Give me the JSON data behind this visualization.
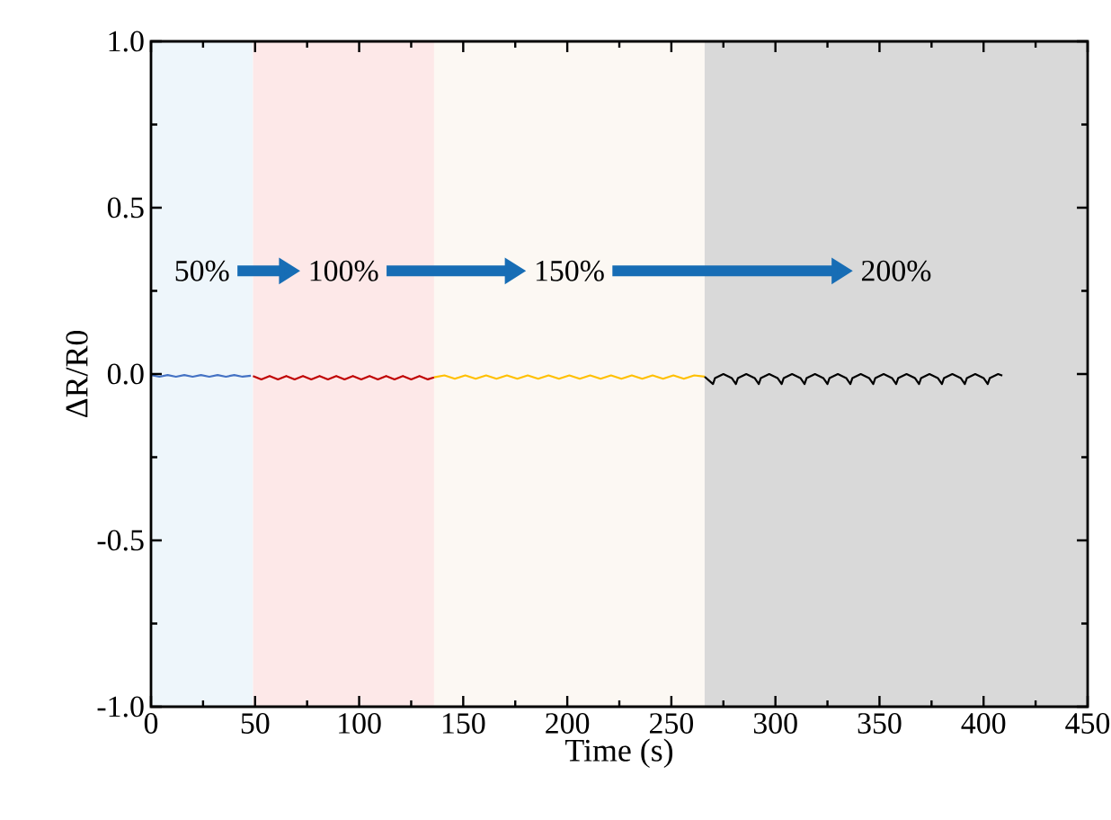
{
  "chart_data": {
    "type": "line",
    "xlabel": "Time (s)",
    "ylabel": "ΔR/R0",
    "xlim": [
      0,
      450
    ],
    "ylim": [
      -1,
      1
    ],
    "xticks": [
      0,
      50,
      100,
      150,
      200,
      250,
      300,
      350,
      400,
      450
    ],
    "yticks": [
      {
        "value": -1,
        "label": "-1.0"
      },
      {
        "value": -0.5,
        "label": "-0.5"
      },
      {
        "value": 0,
        "label": "0.0"
      },
      {
        "value": 0.5,
        "label": "0.5"
      },
      {
        "value": 1,
        "label": "1.0"
      }
    ],
    "grid": false,
    "marker": "none",
    "line_style": "solid",
    "bands": [
      {
        "axis": "x",
        "from": 0,
        "to": 49,
        "label": "50%",
        "color": "#eef6fb"
      },
      {
        "axis": "x",
        "from": 49,
        "to": 136,
        "label": "100%",
        "color": "#fde8e8"
      },
      {
        "axis": "x",
        "from": 136,
        "to": 266,
        "label": "150%",
        "color": "#fcf8f3"
      },
      {
        "axis": "x",
        "from": 266,
        "to": 450,
        "label": "200%",
        "color": "#d9d9d9"
      }
    ],
    "series": [
      {
        "color": "#4472c4",
        "x": [
          0,
          4,
          8,
          12,
          16,
          20,
          24,
          28,
          32,
          36,
          40,
          44,
          48
        ],
        "values": [
          -0.003,
          -0.008,
          -0.003,
          -0.008,
          -0.003,
          -0.008,
          -0.003,
          -0.008,
          -0.003,
          -0.008,
          -0.003,
          -0.008,
          -0.005
        ]
      },
      {
        "color": "#c00000",
        "x": [
          49,
          53,
          57,
          61,
          65,
          69,
          73,
          77,
          81,
          85,
          89,
          93,
          97,
          101,
          105,
          109,
          113,
          117,
          121,
          125,
          129,
          133,
          136
        ],
        "values": [
          -0.006,
          -0.016,
          -0.006,
          -0.016,
          -0.006,
          -0.016,
          -0.006,
          -0.016,
          -0.006,
          -0.016,
          -0.006,
          -0.016,
          -0.006,
          -0.016,
          -0.006,
          -0.016,
          -0.006,
          -0.016,
          -0.006,
          -0.016,
          -0.006,
          -0.016,
          -0.01
        ]
      },
      {
        "color": "#ffc000",
        "x": [
          136,
          141,
          146,
          151,
          156,
          161,
          166,
          171,
          176,
          181,
          186,
          191,
          196,
          201,
          206,
          211,
          216,
          221,
          226,
          231,
          236,
          241,
          246,
          251,
          256,
          261,
          266
        ],
        "values": [
          -0.01,
          -0.004,
          -0.014,
          -0.004,
          -0.014,
          -0.004,
          -0.014,
          -0.004,
          -0.014,
          -0.004,
          -0.014,
          -0.004,
          -0.014,
          -0.004,
          -0.014,
          -0.004,
          -0.014,
          -0.004,
          -0.014,
          -0.004,
          -0.014,
          -0.004,
          -0.014,
          -0.004,
          -0.014,
          -0.004,
          -0.008
        ]
      },
      {
        "color": "#000000",
        "x": [
          266,
          270,
          271,
          275,
          279,
          281,
          282,
          286,
          290,
          292,
          293,
          297,
          301,
          303,
          304,
          308,
          312,
          314,
          315,
          319,
          323,
          325,
          326,
          330,
          334,
          336,
          337,
          341,
          345,
          347,
          348,
          352,
          356,
          358,
          359,
          363,
          367,
          369,
          370,
          374,
          378,
          380,
          381,
          385,
          389,
          391,
          392,
          396,
          400,
          402,
          403,
          407,
          409
        ],
        "values": [
          -0.008,
          -0.03,
          -0.012,
          0.0,
          -0.012,
          -0.03,
          -0.012,
          0.0,
          -0.012,
          -0.03,
          -0.012,
          0.0,
          -0.012,
          -0.03,
          -0.012,
          0.0,
          -0.012,
          -0.03,
          -0.012,
          0.0,
          -0.012,
          -0.03,
          -0.012,
          0.0,
          -0.012,
          -0.03,
          -0.012,
          0.0,
          -0.012,
          -0.03,
          -0.012,
          0.0,
          -0.012,
          -0.03,
          -0.012,
          0.0,
          -0.012,
          -0.03,
          -0.012,
          0.0,
          -0.012,
          -0.03,
          -0.012,
          0.0,
          -0.012,
          -0.03,
          -0.012,
          0.0,
          -0.012,
          -0.03,
          -0.012,
          0.0,
          -0.005
        ]
      }
    ]
  }
}
